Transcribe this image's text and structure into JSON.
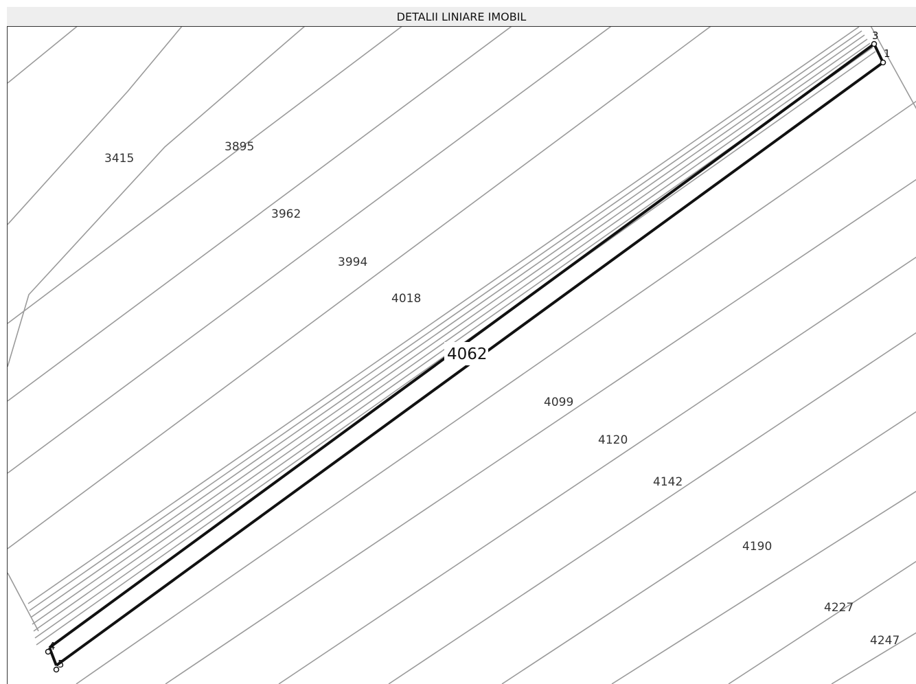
{
  "header": {
    "title": "DETALII LINIARE IMOBIL"
  },
  "map": {
    "highlighted_parcel": "4062",
    "parcels": [
      "3415",
      "3895",
      "3962",
      "3994",
      "4018",
      "4099",
      "4120",
      "4142",
      "4190",
      "4227",
      "4247"
    ],
    "vertices": [
      "1",
      "3",
      "4",
      "5"
    ]
  },
  "colors": {
    "boundary": "#a0a0a0",
    "highlight": "#111111",
    "header_bg": "#eeeeee"
  }
}
